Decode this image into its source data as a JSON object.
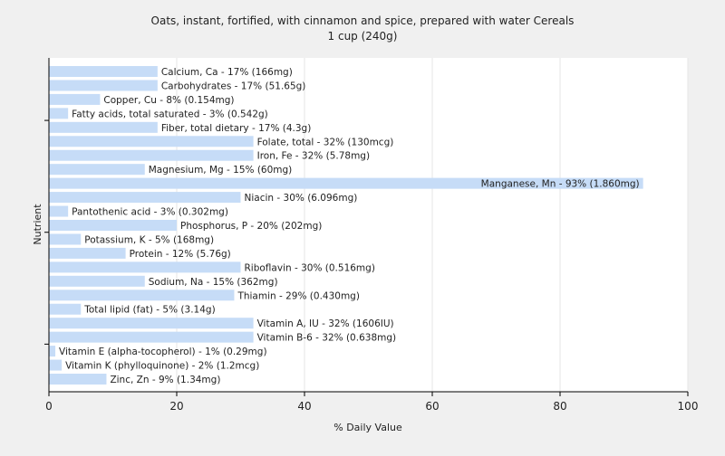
{
  "chart_data": {
    "type": "bar",
    "orientation": "horizontal",
    "title": "Oats, instant, fortified, with cinnamon and spice, prepared with water Cereals",
    "subtitle": "1 cup (240g)",
    "xlabel": "% Daily Value",
    "ylabel": "Nutrient",
    "xlim": [
      0,
      100
    ],
    "xticks": [
      0,
      20,
      40,
      60,
      80,
      100
    ],
    "grid": true,
    "bar_color": "#c6dcf7",
    "categories": [
      "Calcium, Ca",
      "Carbohydrates",
      "Copper, Cu",
      "Fatty acids, total saturated",
      "Fiber, total dietary",
      "Folate, total",
      "Iron, Fe",
      "Magnesium, Mg",
      "Manganese, Mn",
      "Niacin",
      "Pantothenic acid",
      "Phosphorus, P",
      "Potassium, K",
      "Protein",
      "Riboflavin",
      "Sodium, Na",
      "Thiamin",
      "Total lipid (fat)",
      "Vitamin A, IU",
      "Vitamin B-6",
      "Vitamin E (alpha-tocopherol)",
      "Vitamin K (phylloquinone)",
      "Zinc, Zn"
    ],
    "values": [
      17,
      17,
      8,
      3,
      17,
      32,
      32,
      15,
      93,
      30,
      3,
      20,
      5,
      12,
      30,
      15,
      29,
      5,
      32,
      32,
      1,
      2,
      9
    ],
    "labels": [
      "Calcium, Ca - 17% (166mg)",
      "Carbohydrates - 17% (51.65g)",
      "Copper, Cu - 8% (0.154mg)",
      "Fatty acids, total saturated - 3% (0.542g)",
      "Fiber, total dietary - 17% (4.3g)",
      "Folate, total - 32% (130mcg)",
      "Iron, Fe - 32% (5.78mg)",
      "Magnesium, Mg - 15% (60mg)",
      "Manganese, Mn - 93% (1.860mg)",
      "Niacin - 30% (6.096mg)",
      "Pantothenic acid - 3% (0.302mg)",
      "Phosphorus, P - 20% (202mg)",
      "Potassium, K - 5% (168mg)",
      "Protein - 12% (5.76g)",
      "Riboflavin - 30% (0.516mg)",
      "Sodium, Na - 15% (362mg)",
      "Thiamin - 29% (0.430mg)",
      "Total lipid (fat) - 5% (3.14g)",
      "Vitamin A, IU - 32% (1606IU)",
      "Vitamin B-6 - 32% (0.638mg)",
      "Vitamin E (alpha-tocopherol) - 1% (0.29mg)",
      "Vitamin K (phylloquinone) - 2% (1.2mcg)",
      "Zinc, Zn - 9% (1.34mg)"
    ]
  }
}
